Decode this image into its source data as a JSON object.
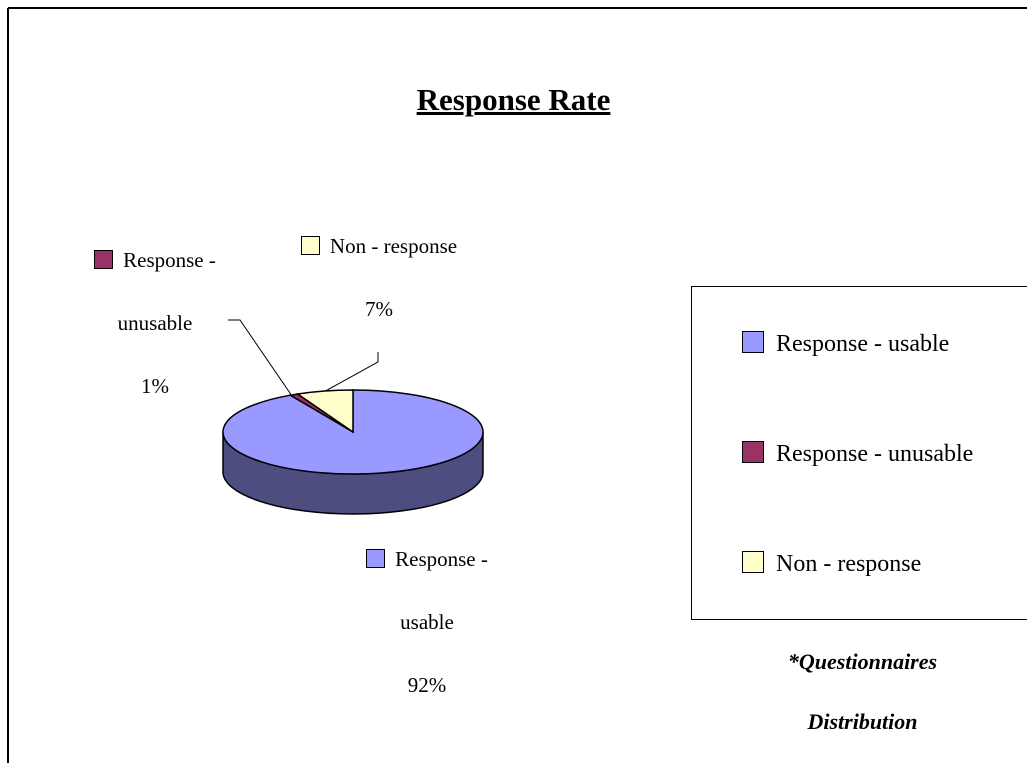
{
  "chart_data": {
    "type": "pie",
    "title": "Response Rate",
    "categories": [
      "Response - usable",
      "Response - unusable",
      "Non - response"
    ],
    "values": [
      92,
      1,
      7
    ],
    "value_labels": [
      "92%",
      "1%",
      "7%"
    ],
    "colors": [
      "#9999ff",
      "#993366",
      "#ffffcc"
    ],
    "legend": "right",
    "annotation": "*Questionnaires Distribution"
  }
}
